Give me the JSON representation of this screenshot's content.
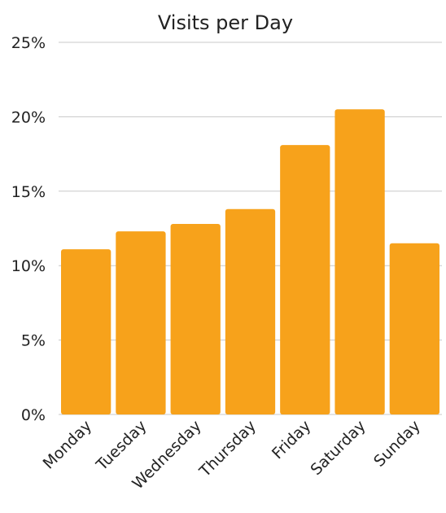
{
  "chart_data": {
    "type": "bar",
    "title": "Visits per Day",
    "xlabel": "",
    "ylabel": "",
    "categories": [
      "Monday",
      "Tuesday",
      "Wednesday",
      "Thursday",
      "Friday",
      "Saturday",
      "Sunday"
    ],
    "values": [
      11.1,
      12.3,
      12.8,
      13.8,
      18.1,
      20.5,
      11.5
    ],
    "unit": "%",
    "ylim": [
      0,
      25
    ],
    "yticks": [
      "0%",
      "5%",
      "10%",
      "15%",
      "20%",
      "25%"
    ],
    "grid": true,
    "legend": "none",
    "bar_color": "#F7A21B"
  }
}
